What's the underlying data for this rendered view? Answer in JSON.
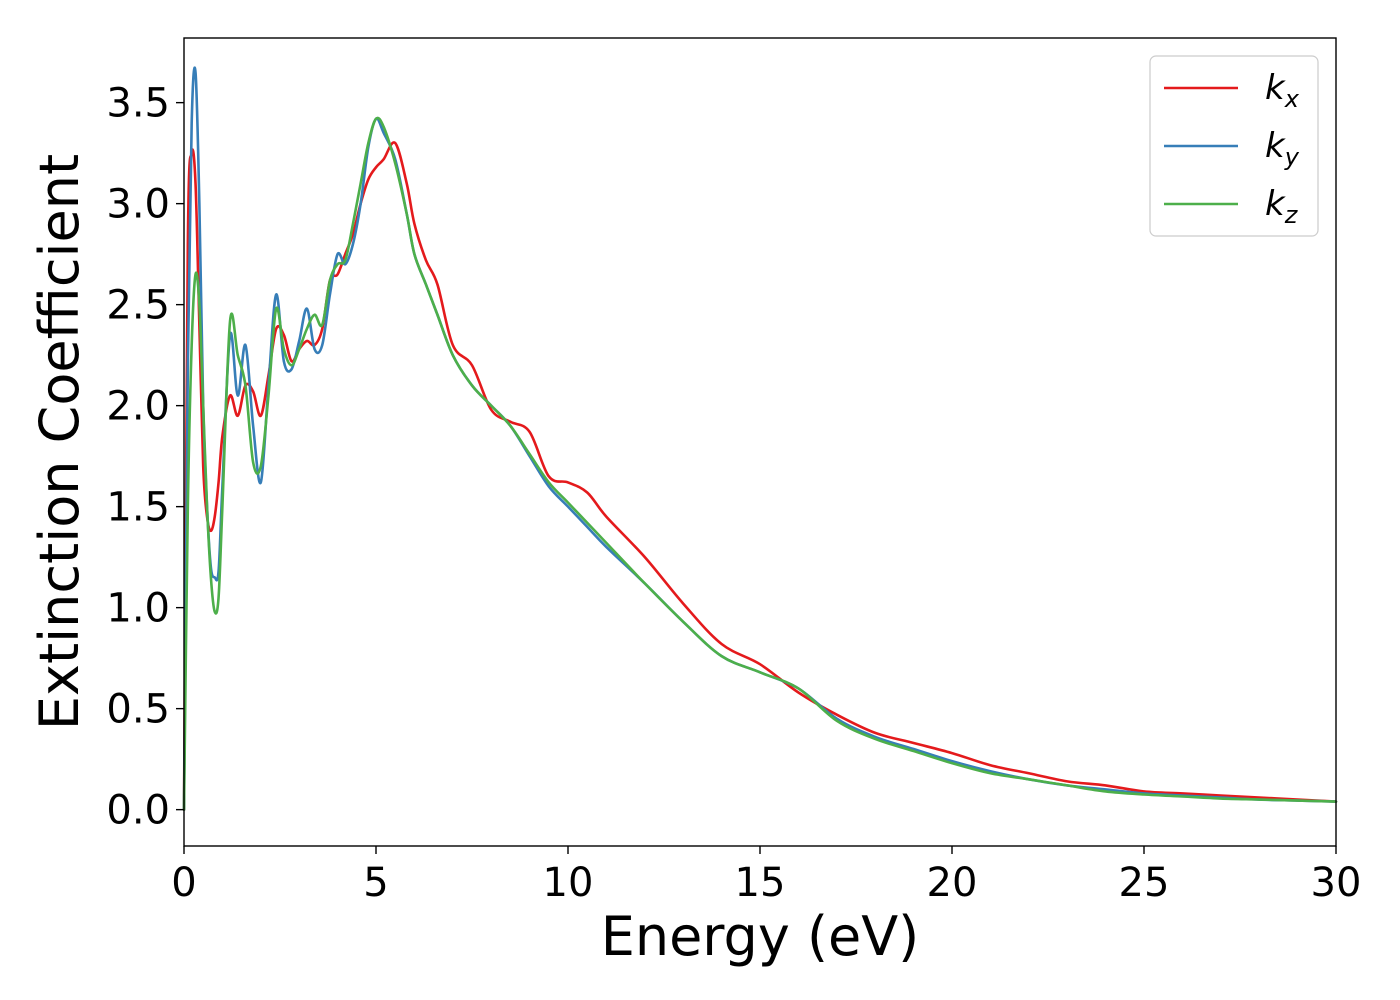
{
  "chart_data": {
    "type": "line",
    "title": "",
    "xlabel": "Energy (eV)",
    "ylabel": "Extinction Coefficient",
    "xlim": [
      0,
      30
    ],
    "ylim": [
      -0.18,
      3.82
    ],
    "xticks": [
      0,
      5,
      10,
      15,
      20,
      25,
      30
    ],
    "xtick_labels": [
      "0",
      "5",
      "10",
      "15",
      "20",
      "25",
      "30"
    ],
    "yticks": [
      0.0,
      0.5,
      1.0,
      1.5,
      2.0,
      2.5,
      3.0,
      3.5
    ],
    "ytick_labels": [
      "0.0",
      "0.5",
      "1.0",
      "1.5",
      "2.0",
      "2.5",
      "3.0",
      "3.5"
    ],
    "grid": false,
    "legend_position": "top-right",
    "series": [
      {
        "name": "k_x",
        "label_main": "k",
        "label_sub": "x",
        "color": "#e41a1c",
        "x": [
          0,
          0.1,
          0.2,
          0.3,
          0.4,
          0.5,
          0.6,
          0.7,
          0.8,
          0.9,
          1.0,
          1.2,
          1.4,
          1.6,
          1.8,
          2.0,
          2.2,
          2.4,
          2.6,
          2.8,
          3.0,
          3.2,
          3.4,
          3.6,
          3.8,
          4.0,
          4.2,
          4.4,
          4.6,
          4.8,
          5.0,
          5.2,
          5.5,
          5.8,
          6.0,
          6.3,
          6.6,
          7.0,
          7.5,
          8.0,
          8.5,
          9.0,
          9.5,
          10.0,
          10.5,
          11.0,
          12.0,
          13.0,
          14.0,
          15.0,
          16.0,
          17.0,
          18.0,
          19.0,
          20.0,
          21.0,
          22.0,
          23.0,
          24.0,
          25.0,
          26.0,
          27.0,
          28.0,
          29.0,
          30.0
        ],
        "y": [
          0.0,
          2.8,
          3.25,
          3.1,
          2.4,
          1.7,
          1.45,
          1.38,
          1.45,
          1.62,
          1.85,
          2.05,
          1.95,
          2.1,
          2.07,
          1.95,
          2.15,
          2.38,
          2.35,
          2.22,
          2.28,
          2.32,
          2.3,
          2.38,
          2.62,
          2.65,
          2.75,
          2.85,
          3.0,
          3.12,
          3.18,
          3.22,
          3.3,
          3.1,
          2.9,
          2.72,
          2.6,
          2.3,
          2.2,
          1.98,
          1.92,
          1.87,
          1.65,
          1.62,
          1.57,
          1.45,
          1.25,
          1.02,
          0.82,
          0.72,
          0.58,
          0.47,
          0.38,
          0.33,
          0.28,
          0.22,
          0.18,
          0.14,
          0.12,
          0.09,
          0.08,
          0.07,
          0.06,
          0.05,
          0.04
        ]
      },
      {
        "name": "k_y",
        "label_main": "k",
        "label_sub": "y",
        "color": "#377eb8",
        "x": [
          0,
          0.1,
          0.2,
          0.3,
          0.4,
          0.5,
          0.6,
          0.7,
          0.8,
          0.9,
          1.0,
          1.2,
          1.4,
          1.6,
          1.8,
          2.0,
          2.2,
          2.4,
          2.6,
          2.8,
          3.0,
          3.2,
          3.4,
          3.6,
          3.8,
          4.0,
          4.2,
          4.4,
          4.6,
          4.8,
          5.0,
          5.2,
          5.5,
          5.8,
          6.0,
          6.3,
          6.6,
          7.0,
          7.5,
          8.0,
          8.5,
          9.0,
          9.5,
          10.0,
          10.5,
          11.0,
          12.0,
          13.0,
          14.0,
          15.0,
          16.0,
          17.0,
          18.0,
          19.0,
          20.0,
          21.0,
          22.0,
          23.0,
          24.0,
          25.0,
          26.0,
          27.0,
          28.0,
          29.0,
          30.0
        ],
        "y": [
          0.0,
          2.2,
          3.4,
          3.65,
          3.0,
          2.0,
          1.5,
          1.2,
          1.15,
          1.18,
          1.6,
          2.35,
          2.05,
          2.3,
          1.9,
          1.62,
          2.1,
          2.55,
          2.22,
          2.18,
          2.32,
          2.48,
          2.28,
          2.3,
          2.55,
          2.75,
          2.7,
          2.8,
          3.0,
          3.28,
          3.42,
          3.35,
          3.22,
          2.95,
          2.75,
          2.6,
          2.45,
          2.25,
          2.1,
          2.0,
          1.9,
          1.75,
          1.6,
          1.5,
          1.4,
          1.3,
          1.12,
          0.93,
          0.76,
          0.68,
          0.6,
          0.45,
          0.36,
          0.3,
          0.24,
          0.19,
          0.15,
          0.12,
          0.1,
          0.08,
          0.07,
          0.06,
          0.05,
          0.045,
          0.04
        ]
      },
      {
        "name": "k_z",
        "label_main": "k",
        "label_sub": "z",
        "color": "#4daf4a",
        "x": [
          0,
          0.1,
          0.2,
          0.3,
          0.4,
          0.5,
          0.6,
          0.7,
          0.8,
          0.9,
          1.0,
          1.2,
          1.4,
          1.6,
          1.8,
          2.0,
          2.2,
          2.4,
          2.6,
          2.8,
          3.0,
          3.2,
          3.4,
          3.6,
          3.8,
          4.0,
          4.2,
          4.4,
          4.6,
          4.8,
          5.0,
          5.2,
          5.5,
          5.8,
          6.0,
          6.3,
          6.6,
          7.0,
          7.5,
          8.0,
          8.5,
          9.0,
          9.5,
          10.0,
          10.5,
          11.0,
          12.0,
          13.0,
          14.0,
          15.0,
          16.0,
          17.0,
          18.0,
          19.0,
          20.0,
          21.0,
          22.0,
          23.0,
          24.0,
          25.0,
          26.0,
          27.0,
          28.0,
          29.0,
          30.0
        ],
        "y": [
          0.0,
          1.5,
          2.3,
          2.65,
          2.5,
          2.0,
          1.5,
          1.15,
          0.98,
          1.05,
          1.5,
          2.42,
          2.25,
          2.1,
          1.72,
          1.7,
          2.05,
          2.48,
          2.28,
          2.2,
          2.28,
          2.38,
          2.45,
          2.4,
          2.62,
          2.7,
          2.72,
          2.9,
          3.1,
          3.3,
          3.42,
          3.38,
          3.2,
          2.95,
          2.75,
          2.6,
          2.45,
          2.25,
          2.1,
          2.0,
          1.9,
          1.76,
          1.62,
          1.52,
          1.42,
          1.32,
          1.12,
          0.93,
          0.76,
          0.68,
          0.6,
          0.44,
          0.35,
          0.29,
          0.23,
          0.18,
          0.15,
          0.12,
          0.09,
          0.075,
          0.065,
          0.055,
          0.05,
          0.045,
          0.04
        ]
      }
    ]
  }
}
